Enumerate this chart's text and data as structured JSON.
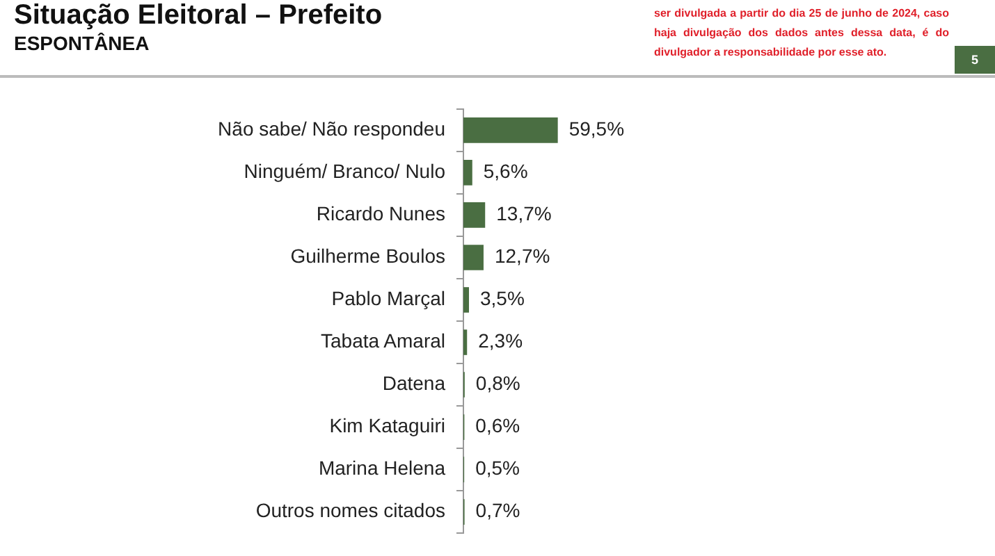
{
  "chart_data": {
    "type": "bar",
    "orientation": "horizontal",
    "title": "Situação Eleitoral – Prefeito",
    "subtitle": "ESPONTÂNEA",
    "categories": [
      "Não sabe/ Não respondeu",
      "Ninguém/ Branco/ Nulo",
      "Ricardo Nunes",
      "Guilherme Boulos",
      "Pablo Marçal",
      "Tabata Amaral",
      "Datena",
      "Kim Kataguiri",
      "Marina Helena",
      "Outros nomes citados"
    ],
    "values": [
      59.5,
      5.6,
      13.7,
      12.7,
      3.5,
      2.3,
      0.8,
      0.6,
      0.5,
      0.7
    ],
    "value_labels": [
      "59,5%",
      "5,6%",
      "13,7%",
      "12,7%",
      "3,5%",
      "2,3%",
      "0,8%",
      "0,6%",
      "0,5%",
      "0,7%"
    ],
    "color": "#4a6e42",
    "tick_labels": "y",
    "legend": false,
    "annotations": [
      "ser divulgada a partir do dia 25 de junho de 2024, caso haja divulgação dos dados antes dessa data, é do divulgador a responsabilidade por esse ato.",
      "5"
    ]
  }
}
